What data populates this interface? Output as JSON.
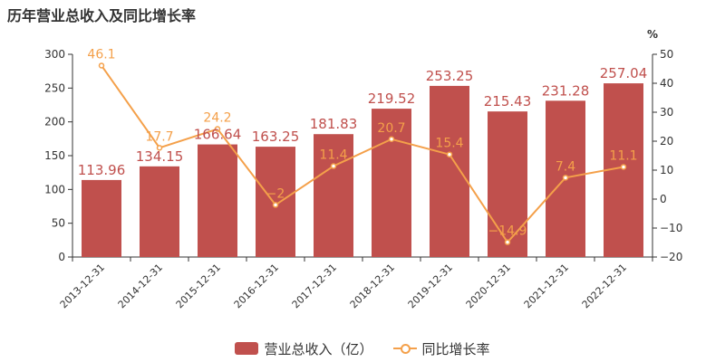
{
  "title": "历年营业总收入及同比增长率",
  "colors": {
    "bar": "#c0504d",
    "line": "#f4a04a",
    "axis": "#333333"
  },
  "chart_data": {
    "type": "bar",
    "categories": [
      "2013-12-31",
      "2014-12-31",
      "2015-12-31",
      "2016-12-31",
      "2017-12-31",
      "2018-12-31",
      "2019-12-31",
      "2020-12-31",
      "2021-12-31",
      "2022-12-31"
    ],
    "series": [
      {
        "name": "营业总收入（亿）",
        "type": "bar",
        "axis": "left",
        "values": [
          113.96,
          134.15,
          166.64,
          163.25,
          181.83,
          219.52,
          253.25,
          215.43,
          231.28,
          257.04
        ],
        "labels": [
          "113.96",
          "134.15",
          "166.64",
          "163.25",
          "181.83",
          "219.52",
          "253.25",
          "215.43",
          "231.28",
          "257.04"
        ]
      },
      {
        "name": "同比增长率",
        "type": "line",
        "axis": "right",
        "values": [
          46.1,
          17.7,
          24.2,
          -2,
          11.4,
          20.7,
          15.4,
          -14.9,
          7.4,
          11.1
        ],
        "labels": [
          "46.1",
          "17.7",
          "24.2",
          "−2",
          "11.4",
          "20.7",
          "15.4",
          "−14.9",
          "7.4",
          "11.1"
        ]
      }
    ],
    "y_left": {
      "min": 0,
      "max": 300,
      "ticks": [
        "0",
        "50",
        "100",
        "150",
        "200",
        "250",
        "300"
      ]
    },
    "y_right": {
      "min": -20,
      "max": 50,
      "ticks": [
        "−20",
        "−10",
        "0",
        "10",
        "20",
        "30",
        "40",
        "50"
      ],
      "unit": "%"
    },
    "legend": {
      "position": "bottom",
      "items": [
        {
          "label": "营业总收入（亿）",
          "kind": "bar"
        },
        {
          "label": "同比增长率",
          "kind": "line"
        }
      ]
    }
  }
}
